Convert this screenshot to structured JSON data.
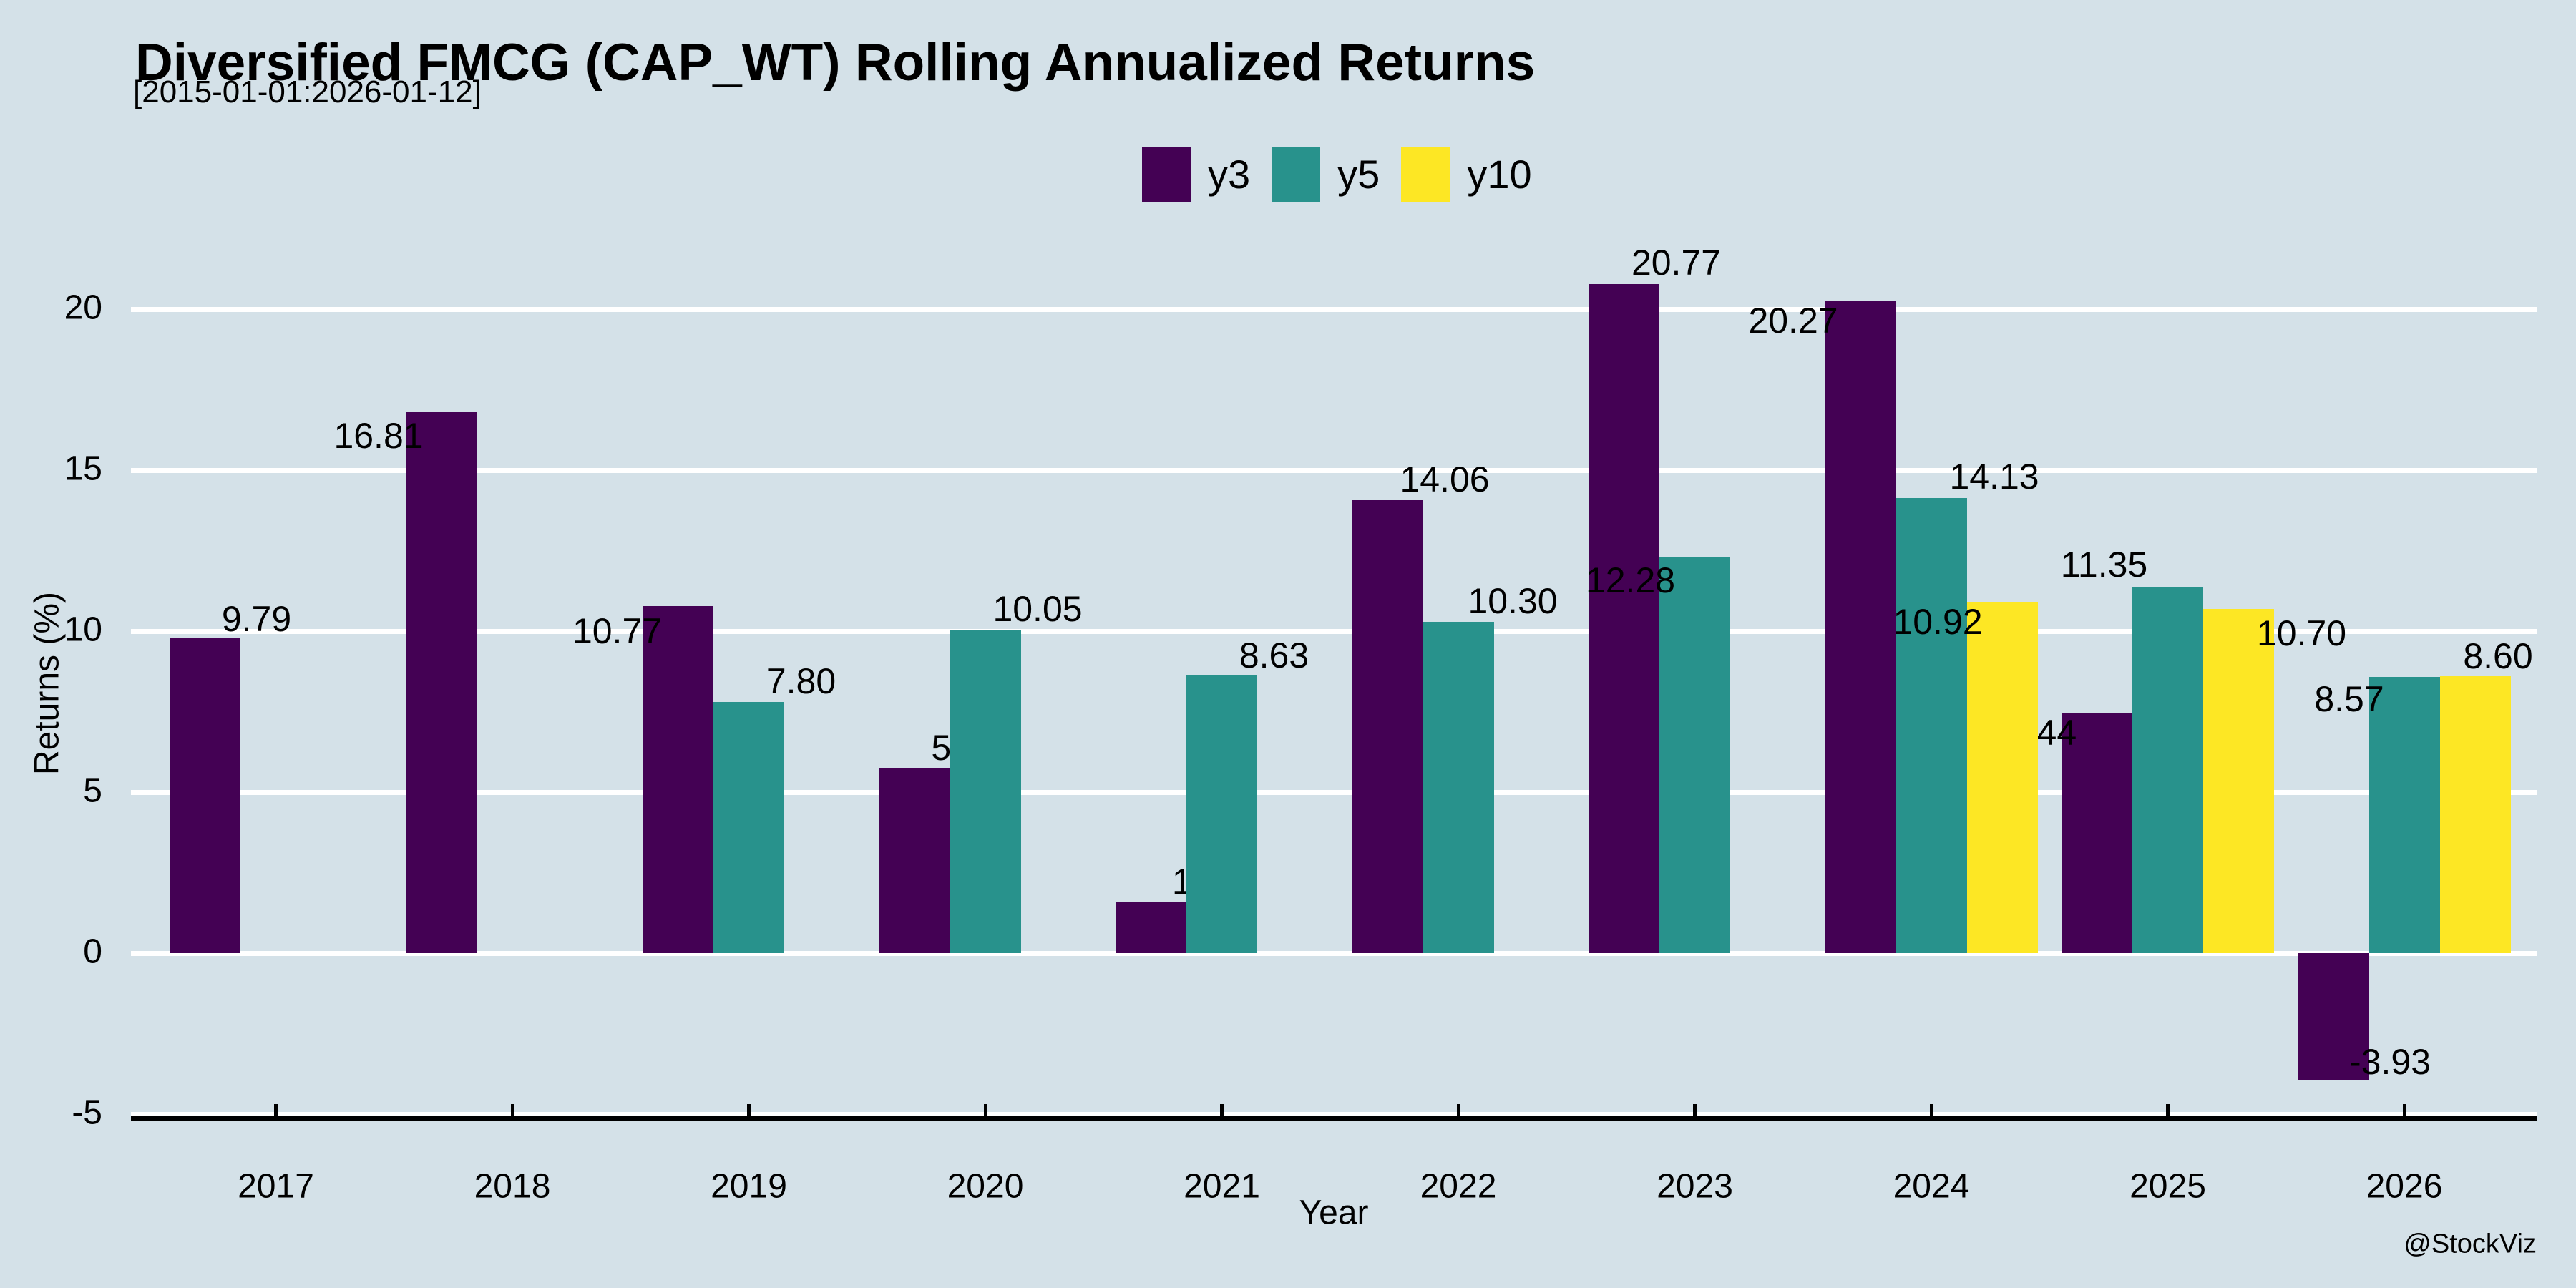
{
  "figure": {
    "background_color": "#d4e1e8",
    "watermark": "@StockViz"
  },
  "chart_data": {
    "type": "bar",
    "title": "Diversified FMCG (CAP_WT) Rolling Annualized Returns",
    "subtitle": "[2015-01-01:2026-01-12]",
    "xlabel": "Year",
    "ylabel": "Returns (%)",
    "categories": [
      "2017",
      "2018",
      "2019",
      "2020",
      "2021",
      "2022",
      "2023",
      "2024",
      "2025",
      "2026"
    ],
    "series": [
      {
        "name": "y3",
        "color": "#440154",
        "values": [
          9.79,
          16.81,
          10.77,
          5.75,
          1.6,
          14.06,
          20.77,
          20.27,
          7.44,
          -3.93
        ]
      },
      {
        "name": "y5",
        "color": "#28928c",
        "values": [
          null,
          null,
          7.8,
          10.05,
          8.63,
          10.3,
          12.28,
          14.13,
          11.35,
          8.57
        ]
      },
      {
        "name": "y10",
        "color": "#fde724",
        "values": [
          null,
          null,
          null,
          null,
          null,
          null,
          null,
          10.92,
          10.7,
          8.6
        ]
      }
    ],
    "yticks": [
      -5,
      0,
      5,
      10,
      15,
      20
    ],
    "ylim": [
      -5.2,
      22
    ],
    "grid": true,
    "gridline_color": "#ffffff",
    "legend_position": "top-center",
    "value_label_decimals": 2,
    "label_offsets": {
      "y3": [
        [
          72,
          -25
        ],
        [
          -88,
          34
        ],
        [
          -85,
          36
        ],
        [
          72,
          -27
        ],
        [
          78,
          -27
        ],
        [
          80,
          -28
        ],
        [
          73,
          -29
        ],
        [
          -94,
          29
        ],
        [
          -77,
          28
        ],
        [
          79,
          -24
        ]
      ],
      "y5": [
        null,
        null,
        [
          73,
          -28
        ],
        [
          73,
          -28
        ],
        [
          73,
          -27
        ],
        [
          76,
          -28
        ],
        [
          -90,
          33
        ],
        [
          88,
          -29
        ],
        [
          -89,
          -31
        ],
        [
          -77,
          32
        ]
      ],
      "y10": [
        null,
        null,
        null,
        null,
        null,
        null,
        null,
        [
          -90,
          29
        ],
        [
          88,
          35
        ],
        [
          32,
          -27
        ]
      ]
    }
  }
}
